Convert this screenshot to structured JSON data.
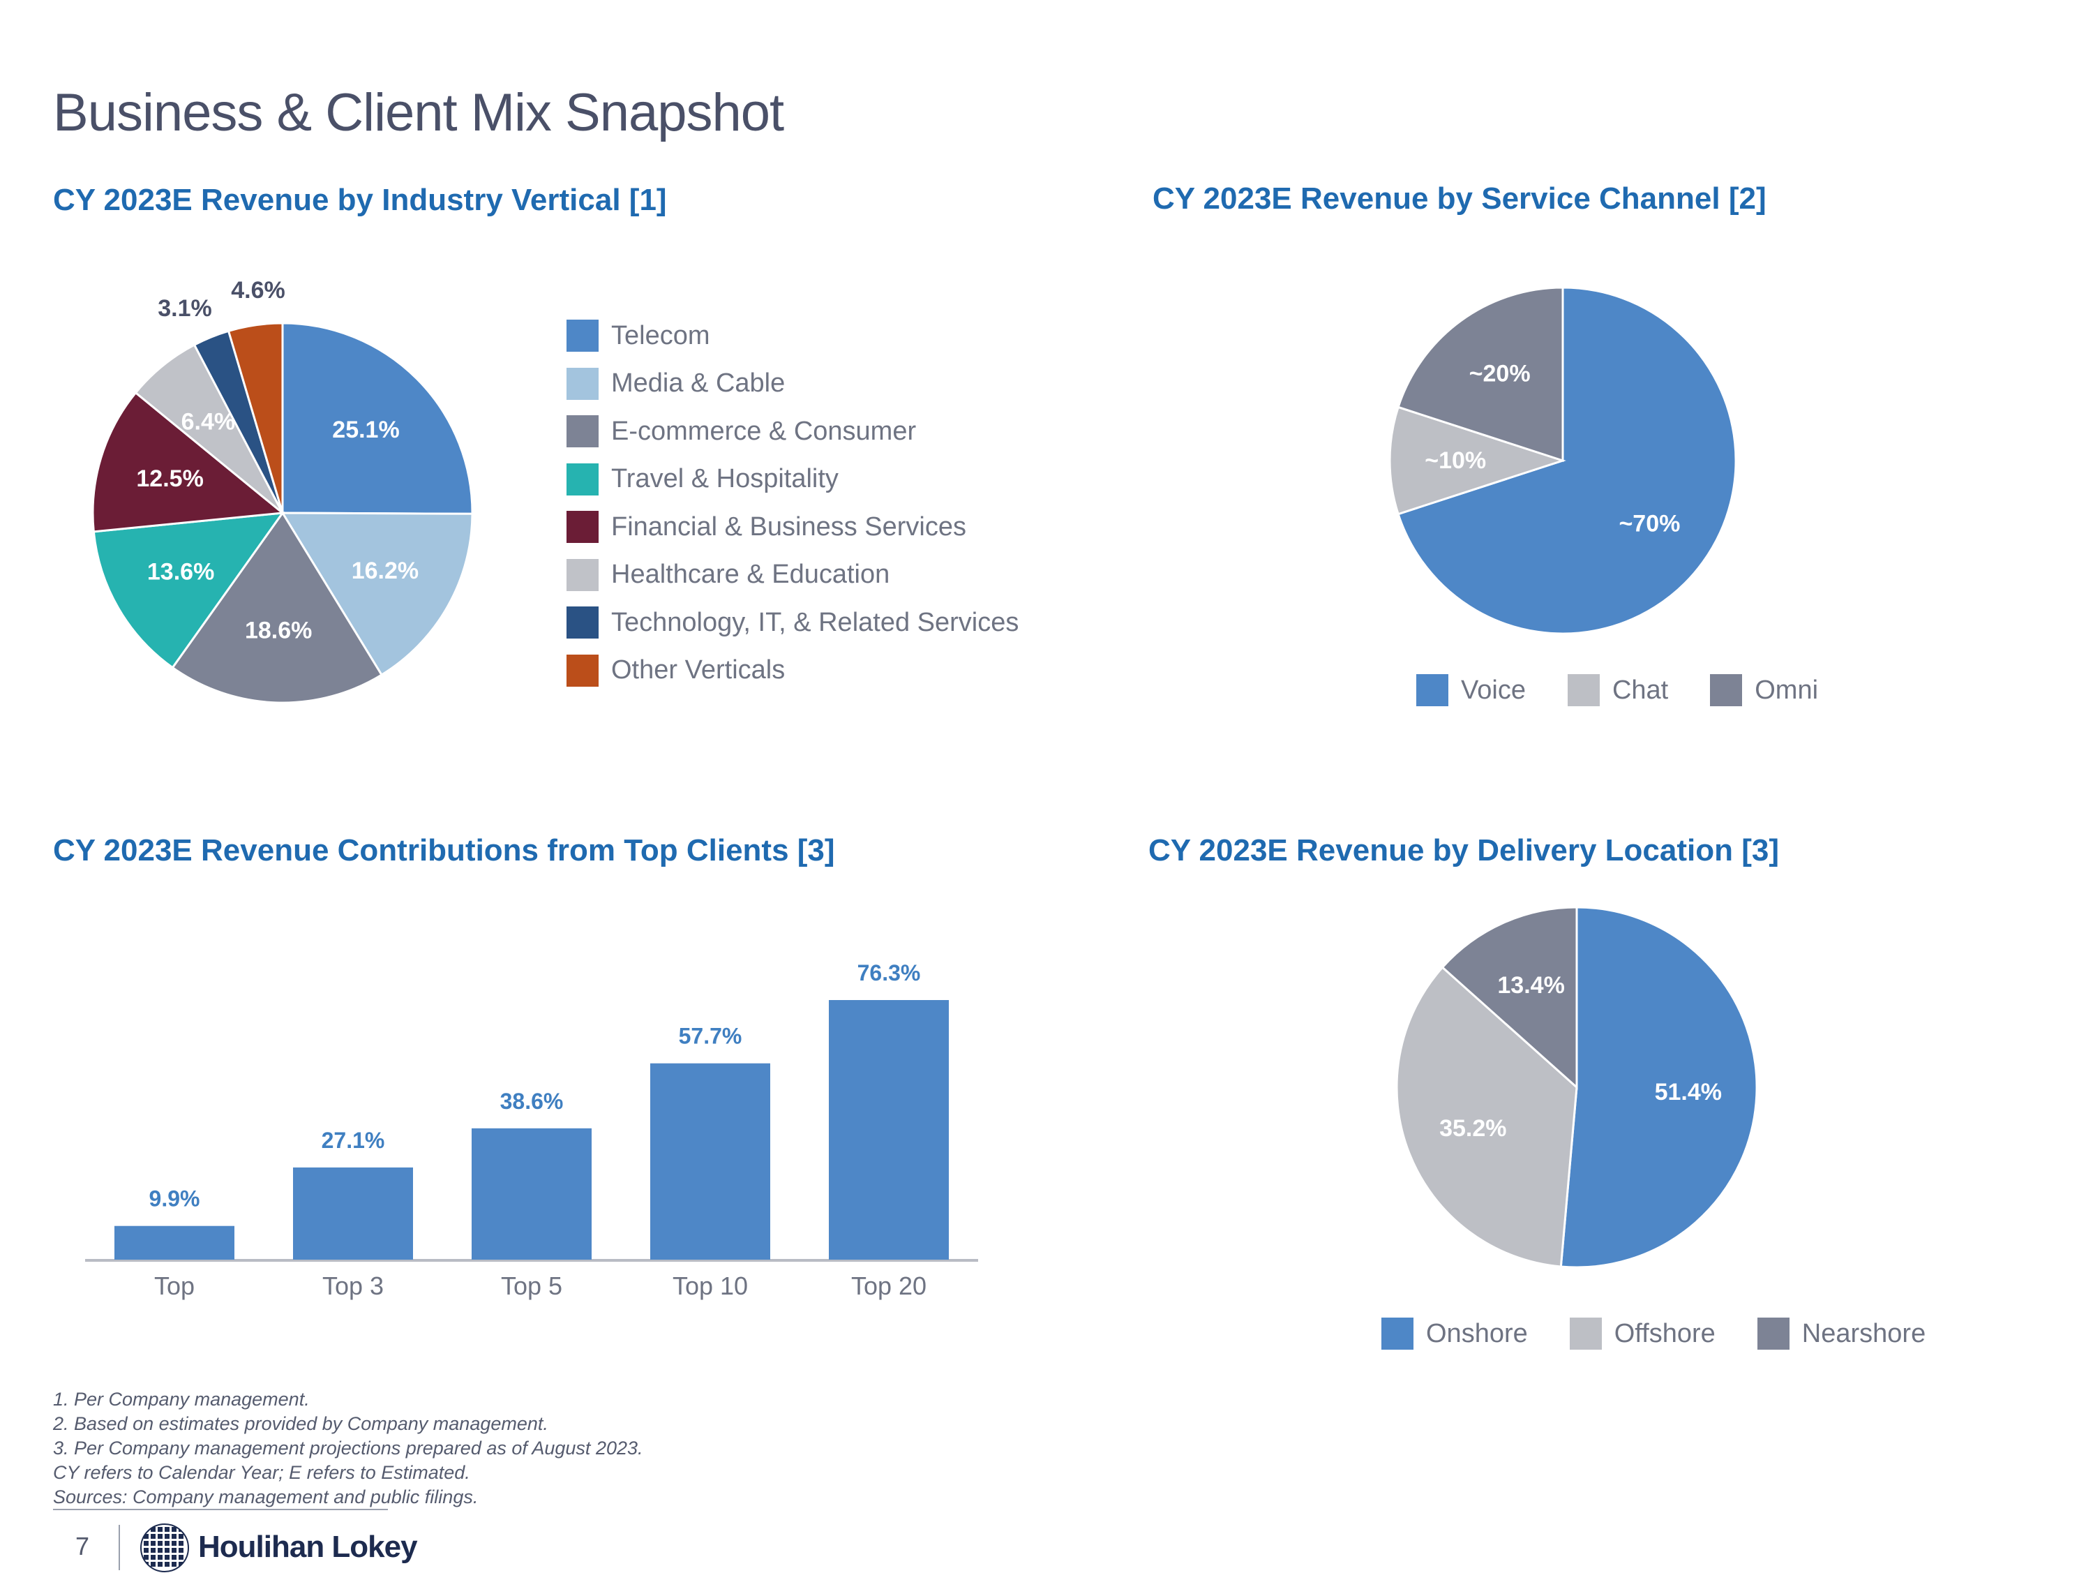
{
  "page": {
    "title": "Business & Client Mix Snapshot",
    "page_number": "7",
    "brand": "Houlihan Lokey"
  },
  "charts": {
    "industry": {
      "title": "CY 2023E Revenue by Industry Vertical [1]"
    },
    "channel": {
      "title": "CY 2023E Revenue by Service Channel [2]"
    },
    "clients": {
      "title": "CY 2023E Revenue Contributions from Top Clients [3]"
    },
    "location": {
      "title": "CY 2023E Revenue by Delivery Location [3]"
    }
  },
  "chart_data": [
    {
      "id": "industry",
      "type": "pie",
      "title": "CY 2023E Revenue by Industry Vertical [1]",
      "slices": [
        {
          "name": "Telecom",
          "value": 25.1,
          "label": "25.1%",
          "color": "#4e87c7"
        },
        {
          "name": "Media & Cable",
          "value": 16.2,
          "label": "16.2%",
          "color": "#a3c4de"
        },
        {
          "name": "E-commerce & Consumer",
          "value": 18.6,
          "label": "18.6%",
          "color": "#7d8395"
        },
        {
          "name": "Travel & Hospitality",
          "value": 13.6,
          "label": "13.6%",
          "color": "#26b3b0"
        },
        {
          "name": "Financial & Business Services",
          "value": 12.5,
          "label": "12.5%",
          "color": "#6b1d36"
        },
        {
          "name": "Healthcare & Education",
          "value": 6.4,
          "label": "6.4%",
          "color": "#c0c2c8"
        },
        {
          "name": "Technology, IT, & Related Services",
          "value": 3.1,
          "label": "3.1%",
          "color": "#2a5284"
        },
        {
          "name": "Other Verticals",
          "value": 4.6,
          "label": "4.6%",
          "color": "#bb4e1a"
        }
      ],
      "legend_placement": "right"
    },
    {
      "id": "channel",
      "type": "pie",
      "title": "CY 2023E Revenue by Service Channel [2]",
      "slices": [
        {
          "name": "Voice",
          "value": 70,
          "label": "~70%",
          "color": "#4e87c7"
        },
        {
          "name": "Chat",
          "value": 10,
          "label": "~10%",
          "color": "#bdbfc5"
        },
        {
          "name": "Omni",
          "value": 20,
          "label": "~20%",
          "color": "#7d8395"
        }
      ],
      "legend_placement": "bottom"
    },
    {
      "id": "clients",
      "type": "bar",
      "title": "CY 2023E Revenue Contributions from Top Clients [3]",
      "categories": [
        "Top",
        "Top 3",
        "Top 5",
        "Top 10",
        "Top 20"
      ],
      "values": [
        9.9,
        27.1,
        38.6,
        57.7,
        76.3
      ],
      "labels": [
        "9.9%",
        "27.1%",
        "38.6%",
        "57.7%",
        "76.3%"
      ],
      "ylim": [
        0,
        80
      ],
      "color": "#4e87c7",
      "label_color": "#3f7fc1"
    },
    {
      "id": "location",
      "type": "pie",
      "title": "CY 2023E Revenue by Delivery Location [3]",
      "slices": [
        {
          "name": "Onshore",
          "value": 51.4,
          "label": "51.4%",
          "color": "#4e87c7"
        },
        {
          "name": "Offshore",
          "value": 35.2,
          "label": "35.2%",
          "color": "#bdbfc5"
        },
        {
          "name": "Nearshore",
          "value": 13.4,
          "label": "13.4%",
          "color": "#7d8395"
        }
      ],
      "legend_placement": "bottom"
    }
  ],
  "footnotes": [
    "1.  Per Company management.",
    "2.  Based on estimates provided by Company management.",
    "3.  Per Company management projections prepared as of August 2023.",
    "CY refers to Calendar Year; E refers to Estimated.",
    "Sources: Company management and public filings."
  ]
}
